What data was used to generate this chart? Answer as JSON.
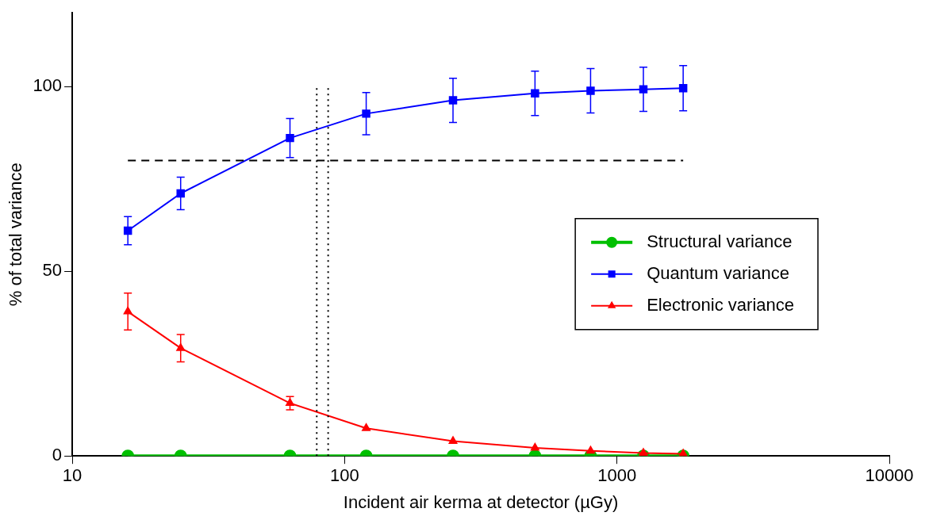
{
  "chart_data": {
    "type": "line",
    "xlabel": "Incident air kerma at detector (µGy)",
    "ylabel": "% of total variance",
    "log": "x",
    "xlim": [
      10,
      10000
    ],
    "xticks": [
      10,
      100,
      1000,
      10000
    ],
    "ylim": [
      0,
      120
    ],
    "yticks": [
      0,
      50,
      100
    ],
    "grid": false,
    "legend": "right",
    "x": [
      16,
      25,
      63,
      120,
      250,
      500,
      800,
      1250,
      1750
    ],
    "series": [
      {
        "name": "Structural variance",
        "color": "#00c000",
        "marker": "circle",
        "values": [
          0,
          0,
          0,
          0,
          0,
          0,
          0,
          0,
          0
        ]
      },
      {
        "name": "Quantum variance",
        "color": "#0000ff",
        "marker": "square",
        "values": [
          61,
          71.1,
          86.1,
          92.7,
          96.3,
          98.2,
          98.9,
          99.3,
          99.6
        ],
        "errors": [
          3.8,
          4.4,
          5.3,
          5.7,
          6,
          6,
          6,
          6,
          6.1
        ]
      },
      {
        "name": "Electronic variance",
        "color": "#ff0000",
        "marker": "triangle",
        "values": [
          39.1,
          29.2,
          14.3,
          7.5,
          4,
          2.2,
          1.4,
          0.8,
          0.6
        ],
        "errors": [
          5,
          3.7,
          1.8,
          null,
          null,
          null,
          null,
          null,
          null
        ]
      },
      {
        "color": "#000000",
        "marker": "none",
        "line_style": "dashed",
        "x": [
          16,
          1750
        ],
        "values": [
          80,
          80
        ]
      },
      {
        "color": "#000000",
        "marker": "none",
        "line_style": "dotted",
        "x": [
          79,
          79
        ],
        "values": [
          0,
          100
        ]
      },
      {
        "color": "#000000",
        "marker": "none",
        "line_style": "dotted",
        "x": [
          87,
          87
        ],
        "values": [
          0,
          100
        ]
      }
    ]
  }
}
